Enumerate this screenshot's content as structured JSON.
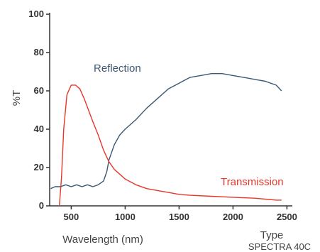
{
  "chart_data": {
    "type": "line",
    "xlabel": "Wavelength (nm)",
    "ylabel": "%T",
    "xlim": [
      300,
      2550
    ],
    "ylim": [
      0,
      100
    ],
    "x_ticks": [
      "500",
      "1000",
      "1500",
      "2000",
      "2500"
    ],
    "y_ticks": [
      "0",
      "20",
      "40",
      "60",
      "80",
      "100"
    ],
    "grid": false,
    "legend": "none",
    "annotations": [
      {
        "text": "Reflection",
        "color": "#3d5873"
      },
      {
        "text": "Transmission",
        "color": "#e8362c"
      }
    ],
    "footer": {
      "line1": "Type",
      "line2": "SPECTRA 40C"
    },
    "series": [
      {
        "name": "Reflection",
        "color": "#3d5873",
        "x": [
          310,
          350,
          400,
          450,
          500,
          550,
          600,
          650,
          700,
          750,
          800,
          830,
          850,
          900,
          950,
          1000,
          1100,
          1200,
          1300,
          1400,
          1500,
          1600,
          1700,
          1800,
          1900,
          2000,
          2100,
          2200,
          2300,
          2400,
          2450
        ],
        "y": [
          9,
          10,
          10,
          11,
          10,
          11,
          10,
          11,
          10,
          11,
          13,
          18,
          24,
          32,
          37,
          40,
          45,
          51,
          56,
          61,
          64,
          67,
          68,
          69,
          69,
          68,
          67,
          66,
          65,
          63,
          60
        ]
      },
      {
        "name": "Transmission",
        "color": "#e8362c",
        "x": [
          390,
          410,
          430,
          460,
          500,
          540,
          580,
          620,
          660,
          700,
          750,
          800,
          850,
          900,
          1000,
          1100,
          1200,
          1300,
          1400,
          1500,
          1600,
          1800,
          2000,
          2200,
          2400,
          2450
        ],
        "y": [
          0,
          15,
          40,
          58,
          63,
          63,
          61,
          56,
          50,
          44,
          37,
          29,
          23,
          19,
          14,
          11,
          9,
          8,
          7,
          6,
          5.5,
          5,
          4.5,
          4,
          3,
          3
        ]
      }
    ]
  }
}
